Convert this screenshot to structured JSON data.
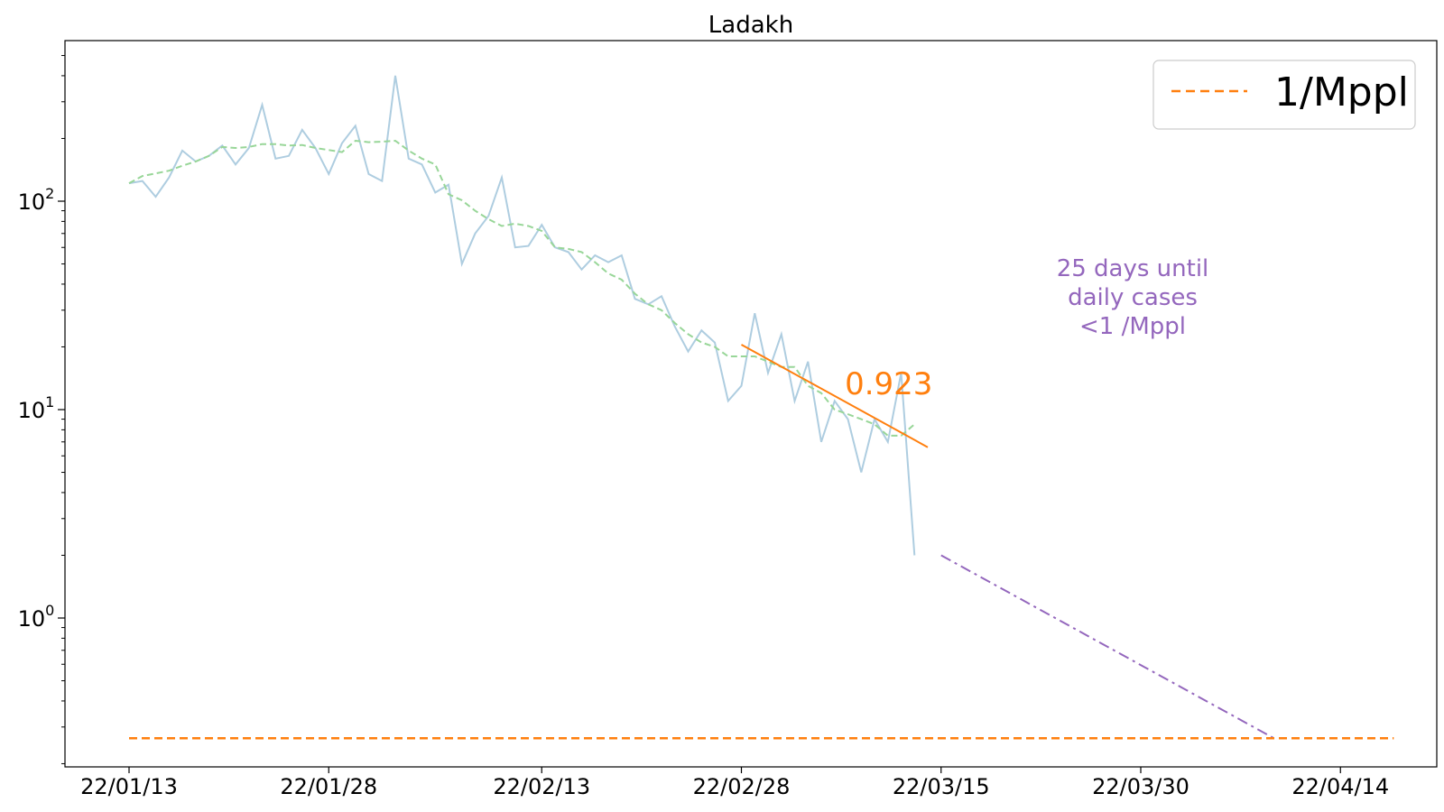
{
  "chart_data": {
    "type": "line",
    "title": "Ladakh",
    "xlabel": "",
    "ylabel": "",
    "y_scale": "log",
    "ylim": [
      0.18,
      560
    ],
    "x_tick_labels": [
      "22/01/13",
      "22/01/28",
      "22/02/13",
      "22/02/28",
      "22/03/15",
      "22/03/30",
      "22/04/14"
    ],
    "y_tick_labels": [
      {
        "base": "10",
        "exp": "0",
        "value": 1
      },
      {
        "base": "10",
        "exp": "1",
        "value": 10
      },
      {
        "base": "10",
        "exp": "2",
        "value": 100
      }
    ],
    "x_dates_label_format": "YY/MM/DD",
    "series": [
      {
        "role": "daily",
        "color": "#aecde0",
        "style": "solid",
        "x_start": "22/01/13",
        "values": [
          122,
          125,
          105,
          130,
          175,
          155,
          165,
          185,
          150,
          180,
          290,
          160,
          165,
          220,
          180,
          135,
          190,
          230,
          135,
          125,
          400,
          160,
          150,
          110,
          120,
          50,
          70,
          85,
          130,
          60,
          61,
          77,
          60,
          57,
          47,
          55,
          51,
          55,
          34,
          32,
          35,
          25,
          19,
          24,
          21,
          11,
          13,
          29,
          15,
          23,
          11,
          17,
          7,
          11,
          9,
          5,
          9,
          7,
          15,
          2
        ]
      },
      {
        "role": "rolling average",
        "color": "#98d698",
        "style": "dashed",
        "x_start": "22/01/13",
        "values": [
          122,
          132,
          136,
          140,
          148,
          155,
          165,
          182,
          180,
          182,
          188,
          188,
          185,
          186,
          180,
          176,
          172,
          195,
          192,
          193,
          195,
          175,
          160,
          150,
          108,
          101,
          90,
          82,
          76,
          78,
          76,
          72,
          60,
          59,
          57,
          51,
          45,
          42,
          36,
          32,
          30,
          26,
          23,
          21,
          20,
          18,
          18,
          18,
          17,
          16,
          16,
          13,
          12,
          10,
          9.5,
          9,
          8.5,
          7.5,
          7.5,
          8.5
        ]
      },
      {
        "role": "fit",
        "color": "#ff7f0e",
        "style": "solid",
        "x": [
          "22/02/28",
          "22/03/14"
        ],
        "values": [
          20.5,
          6.6
        ]
      },
      {
        "role": "projection",
        "color": "#9467bd",
        "style": "dashdot",
        "x": [
          "22/03/15",
          "22/04/09"
        ],
        "values": [
          2.0,
          0.265
        ]
      },
      {
        "name": "1/Mppl",
        "role": "threshold",
        "color": "#ff7f0e",
        "style": "dashed",
        "x": [
          "22/01/13",
          "22/04/18"
        ],
        "values": [
          0.265,
          0.265
        ]
      }
    ],
    "legend": {
      "placement": "upper right",
      "entries": [
        "1/Mppl"
      ]
    },
    "annotations": {
      "slope": "0.923",
      "until_lines": [
        "25 days until",
        "daily cases",
        "<1 /Mppl"
      ]
    },
    "grid": false
  }
}
